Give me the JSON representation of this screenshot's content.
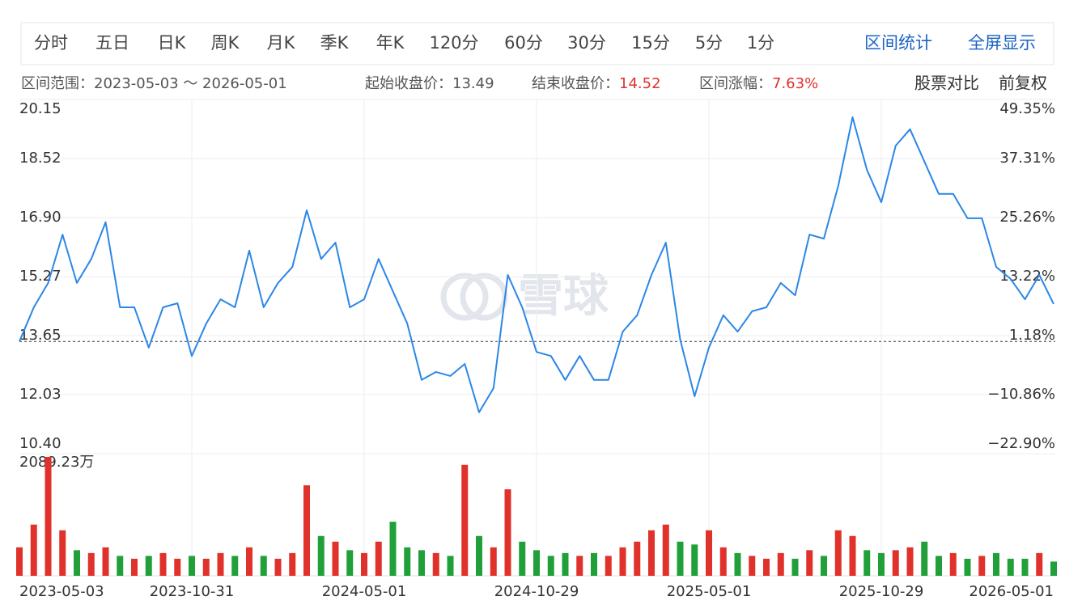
{
  "toolbar": {
    "tabs": [
      "分时",
      "五日",
      "日K",
      "周K",
      "月K",
      "季K",
      "年K",
      "120分",
      "60分",
      "30分",
      "15分",
      "5分",
      "1分"
    ],
    "actions": [
      "区间统计",
      "全屏显示"
    ]
  },
  "range_info": {
    "range_label": "区间范围：",
    "range": "2023-05-03 ～ 2026-05-01",
    "start_label": "起始收盘价：",
    "start_close": "13.49",
    "end_label": "结束收盘价：",
    "end_close": "14.52",
    "change_label": "区间涨幅：",
    "change": "7.63%",
    "compare": "股票对比",
    "adjust": "前复权"
  },
  "watermark": "雪球",
  "chart_data": {
    "type": "line",
    "color": "#2b87e6",
    "up_color": "#e0312b",
    "down_color": "#21a03a",
    "grid": true,
    "categories": [
      "2023-05-03",
      null,
      null,
      null,
      null,
      null,
      null,
      null,
      null,
      null,
      null,
      null,
      "2023-10-31",
      null,
      null,
      null,
      null,
      null,
      null,
      null,
      null,
      null,
      null,
      null,
      "2024-05-01",
      null,
      null,
      null,
      null,
      null,
      null,
      null,
      null,
      null,
      null,
      null,
      "2024-10-29",
      null,
      null,
      null,
      null,
      null,
      null,
      null,
      null,
      null,
      null,
      null,
      "2025-05-01",
      null,
      null,
      null,
      null,
      null,
      null,
      null,
      null,
      null,
      null,
      null,
      "2025-10-29",
      null,
      null,
      null,
      null,
      null,
      null,
      null,
      null,
      null,
      null,
      null,
      "2026-05-01"
    ],
    "values": [
      13.49,
      14.43,
      15.1,
      16.43,
      15.1,
      15.76,
      16.77,
      14.43,
      14.43,
      13.32,
      14.43,
      14.54,
      13.09,
      13.98,
      14.65,
      14.43,
      15.99,
      14.43,
      15.1,
      15.54,
      17.1,
      15.76,
      16.21,
      14.43,
      14.65,
      15.76,
      14.87,
      13.98,
      12.43,
      12.65,
      12.54,
      12.87,
      11.54,
      12.2,
      15.32,
      14.43,
      13.2,
      13.09,
      12.43,
      13.09,
      12.43,
      12.43,
      13.76,
      14.21,
      15.32,
      16.21,
      13.54,
      11.98,
      13.32,
      14.21,
      13.76,
      14.32,
      14.43,
      15.1,
      14.76,
      16.43,
      16.32,
      17.77,
      19.66,
      18.21,
      17.32,
      18.88,
      19.33,
      18.44,
      17.55,
      17.55,
      16.88,
      16.88,
      15.54,
      15.21,
      14.65,
      15.32,
      14.52
    ],
    "ylim": [
      10.4,
      20.15
    ],
    "yticks": [
      20.15,
      18.52,
      {
        "value": 16.9,
        "label": "16.90"
      },
      15.27,
      13.65,
      12.03,
      {
        "value": 10.4,
        "label": "10.40"
      }
    ],
    "y2lim": [
      -22.9,
      49.35
    ],
    "y2ticks": [
      {
        "value": 49.35,
        "label": "49.35%"
      },
      {
        "value": 37.31,
        "label": "37.31%"
      },
      {
        "value": 25.26,
        "label": "25.26%"
      },
      {
        "value": 13.22,
        "label": "13.22%"
      },
      {
        "value": 1.18,
        "label": "1.18%"
      },
      {
        "value": -10.86,
        "label": "−10.86%"
      },
      {
        "value": -22.9,
        "label": "−22.90%"
      }
    ],
    "volume": {
      "type": "bar",
      "ylim": [
        0,
        2089.23
      ],
      "yticks": [
        {
          "value": 2089.23,
          "label": "2089.23万"
        }
      ],
      "values": [
        500,
        900,
        2089.23,
        800,
        450,
        400,
        500,
        350,
        300,
        350,
        400,
        300,
        350,
        300,
        400,
        350,
        500,
        350,
        300,
        400,
        1590,
        700,
        600,
        450,
        400,
        600,
        950,
        500,
        450,
        400,
        350,
        1950,
        700,
        500,
        1520,
        600,
        450,
        350,
        400,
        350,
        400,
        350,
        500,
        600,
        800,
        900,
        600,
        550,
        800,
        500,
        400,
        350,
        300,
        400,
        300,
        450,
        350,
        800,
        700,
        450,
        400,
        450,
        500,
        600,
        350,
        400,
        300,
        350,
        400,
        300,
        300,
        400,
        250
      ]
    }
  }
}
